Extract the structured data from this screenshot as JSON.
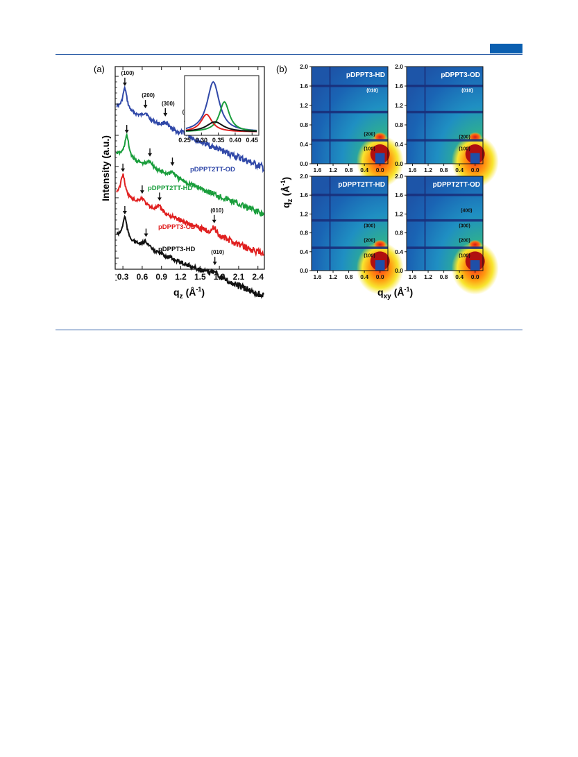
{
  "figure": {
    "panel_a_label": "(a)",
    "panel_b_label": "(b)"
  },
  "chart_data": [
    {
      "type": "line",
      "panel": "(a)",
      "xlabel": "q",
      "xlabel_sub": "z",
      "xlabel_unit": "(Å",
      "xlabel_unit_sup": "-1",
      "xlabel_unit_end": ")",
      "ylabel": "Intensity (a.u.)",
      "xlim": [
        0.18,
        2.5
      ],
      "x_ticks": [
        "0.3",
        "0.6",
        "0.9",
        "1.2",
        "1.5",
        "1.8",
        "2.1",
        "2.4"
      ],
      "y_scale": "log",
      "series": [
        {
          "name": "pDPPT2TT-OD",
          "color": "#3048a8",
          "offset": 0,
          "peaks": [
            {
              "label": "(100)",
              "q": 0.33
            },
            {
              "label": "(200)",
              "q": 0.65
            },
            {
              "label": "(300)",
              "q": 0.96
            },
            {
              "label": "(400)",
              "q": 1.28
            }
          ]
        },
        {
          "name": "pDPPT2TT-HD",
          "color": "#1a9e3c",
          "offset": 1,
          "peaks": [
            {
              "label": "",
              "q": 0.36
            },
            {
              "label": "",
              "q": 0.72
            },
            {
              "label": "",
              "q": 1.07
            }
          ]
        },
        {
          "name": "pDPPT3-OD",
          "color": "#e02020",
          "offset": 2,
          "peaks": [
            {
              "label": "",
              "q": 0.3
            },
            {
              "label": "",
              "q": 0.6
            },
            {
              "label": "",
              "q": 0.87
            },
            {
              "label": "(010)",
              "q": 1.72
            }
          ]
        },
        {
          "name": "pDPPT3-HD",
          "color": "#111111",
          "offset": 3,
          "peaks": [
            {
              "label": "",
              "q": 0.33
            },
            {
              "label": "",
              "q": 0.66
            },
            {
              "label": "(010)",
              "q": 1.73
            }
          ]
        }
      ],
      "inset": {
        "xlim": [
          0.25,
          0.47
        ],
        "x_ticks": [
          "0.25",
          "0.30",
          "0.35",
          "0.40",
          "0.45"
        ],
        "peaks": [
          {
            "color": "#3048a8",
            "center": 0.335,
            "height": 1.0,
            "width": 0.022
          },
          {
            "color": "#1a9e3c",
            "center": 0.368,
            "height": 0.6,
            "width": 0.018
          },
          {
            "color": "#e02020",
            "center": 0.315,
            "height": 0.35,
            "width": 0.02
          },
          {
            "color": "#111111",
            "center": 0.34,
            "height": 0.2,
            "width": 0.03
          }
        ]
      }
    },
    {
      "type": "heatmap",
      "panel": "(b)",
      "xlabel": "q",
      "xlabel_sub": "xy",
      "xlabel_unit": "(Å",
      "xlabel_unit_sup": "-1",
      "xlabel_unit_end": ")",
      "ylabel": "q",
      "ylabel_sub": "z",
      "ylabel_unit": "(Å",
      "ylabel_unit_sup": "-1",
      "ylabel_unit_end": ")",
      "x_ticks": [
        "1.6",
        "1.2",
        "0.8",
        "0.4",
        "0.0"
      ],
      "y_ticks": [
        "0.0",
        "0.4",
        "0.8",
        "1.2",
        "1.6",
        "2.0"
      ],
      "maps": [
        {
          "title": "pDPPT3-HD",
          "labels": [
            {
              "text": "(010)",
              "qxy": 0.2,
              "qz": 1.48
            },
            {
              "text": "(200)",
              "qxy": 0.27,
              "qz": 0.58
            },
            {
              "text": "(100)",
              "qxy": 0.27,
              "qz": 0.28
            }
          ]
        },
        {
          "title": "pDPPT3-OD",
          "labels": [
            {
              "text": "(010)",
              "qxy": 0.2,
              "qz": 1.48
            },
            {
              "text": "(200)",
              "qxy": 0.27,
              "qz": 0.52
            },
            {
              "text": "(100)",
              "qxy": 0.27,
              "qz": 0.28
            }
          ]
        },
        {
          "title": "pDPPT2TT-HD",
          "labels": [
            {
              "text": "(300)",
              "qxy": 0.27,
              "qz": 0.92
            },
            {
              "text": "(200)",
              "qxy": 0.27,
              "qz": 0.61
            },
            {
              "text": "(100)",
              "qxy": 0.27,
              "qz": 0.29
            }
          ]
        },
        {
          "title": "pDPPT2TT-OD",
          "labels": [
            {
              "text": "(400)",
              "qxy": 0.22,
              "qz": 1.24
            },
            {
              "text": "(300)",
              "qxy": 0.27,
              "qz": 0.92
            },
            {
              "text": "(200)",
              "qxy": 0.27,
              "qz": 0.61
            },
            {
              "text": "(100)",
              "qxy": 0.27,
              "qz": 0.29
            }
          ]
        }
      ]
    }
  ]
}
